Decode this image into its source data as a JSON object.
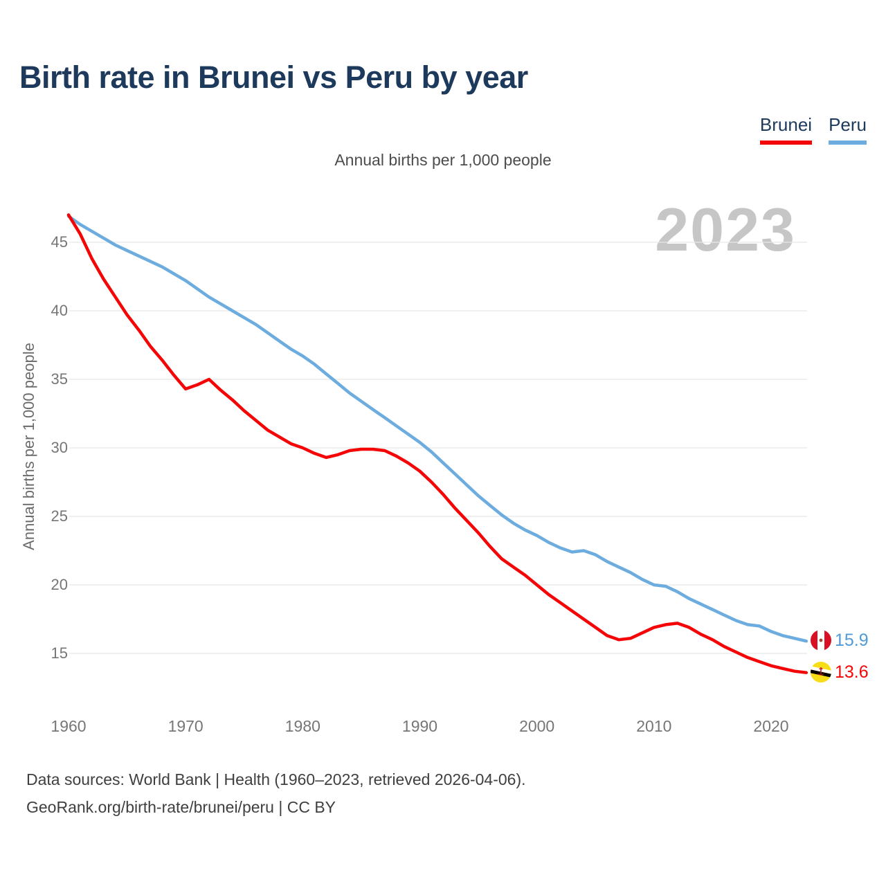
{
  "title": "Birth rate in Brunei vs Peru by year",
  "subtitle": "Annual births per 1,000 people",
  "watermark": "2023",
  "legend": {
    "items": [
      {
        "label": "Brunei",
        "color": "#f40606"
      },
      {
        "label": "Peru",
        "color": "#6cacdf"
      }
    ]
  },
  "y_axis": {
    "title": "Annual births per 1,000 people",
    "ticks": [
      45,
      40,
      35,
      30,
      25,
      20,
      15
    ]
  },
  "x_axis": {
    "ticks": [
      1960,
      1970,
      1980,
      1990,
      2000,
      2010,
      2020
    ]
  },
  "end_labels": [
    {
      "series": "Peru",
      "value": "15.9",
      "color": "#4f9bd8",
      "flag": "peru-flag"
    },
    {
      "series": "Brunei",
      "value": "13.6",
      "color": "#f40606",
      "flag": "brunei-flag"
    }
  ],
  "footer": {
    "line1": "Data sources: World Bank | Health (1960–2023, retrieved 2026-04-06).",
    "line2": "GeoRank.org/birth-rate/brunei/peru | CC BY"
  },
  "chart_data": {
    "type": "line",
    "title": "Birth rate in Brunei vs Peru by year",
    "ylabel": "Annual births per 1,000 people",
    "xlim": [
      1960,
      2023
    ],
    "ylim": [
      12.5,
      47.5
    ],
    "grid": "horizontal",
    "legend_position": "top-right",
    "x": [
      1960,
      1961,
      1962,
      1963,
      1964,
      1965,
      1966,
      1967,
      1968,
      1969,
      1970,
      1971,
      1972,
      1973,
      1974,
      1975,
      1976,
      1977,
      1978,
      1979,
      1980,
      1981,
      1982,
      1983,
      1984,
      1985,
      1986,
      1987,
      1988,
      1989,
      1990,
      1991,
      1992,
      1993,
      1994,
      1995,
      1996,
      1997,
      1998,
      1999,
      2000,
      2001,
      2002,
      2003,
      2004,
      2005,
      2006,
      2007,
      2008,
      2009,
      2010,
      2011,
      2012,
      2013,
      2014,
      2015,
      2016,
      2017,
      2018,
      2019,
      2020,
      2021,
      2022,
      2023
    ],
    "series": [
      {
        "name": "Peru",
        "color": "#6cacdf",
        "values": [
          46.9,
          46.3,
          45.8,
          45.3,
          44.8,
          44.4,
          44.0,
          43.6,
          43.2,
          42.7,
          42.2,
          41.6,
          41.0,
          40.5,
          40.0,
          39.5,
          39.0,
          38.4,
          37.8,
          37.2,
          36.7,
          36.1,
          35.4,
          34.7,
          34.0,
          33.4,
          32.8,
          32.2,
          31.6,
          31.0,
          30.4,
          29.7,
          28.9,
          28.1,
          27.3,
          26.5,
          25.8,
          25.1,
          24.5,
          24.0,
          23.6,
          23.1,
          22.7,
          22.4,
          22.5,
          22.2,
          21.7,
          21.3,
          20.9,
          20.4,
          20.0,
          19.9,
          19.5,
          19.0,
          18.6,
          18.2,
          17.8,
          17.4,
          17.1,
          17.0,
          16.6,
          16.3,
          16.1,
          15.9
        ]
      },
      {
        "name": "Brunei",
        "color": "#f40606",
        "values": [
          47.0,
          45.6,
          43.8,
          42.3,
          41.0,
          39.7,
          38.6,
          37.4,
          36.4,
          35.3,
          34.3,
          34.6,
          35.0,
          34.2,
          33.5,
          32.7,
          32.0,
          31.3,
          30.8,
          30.3,
          30.0,
          29.6,
          29.3,
          29.5,
          29.8,
          29.9,
          29.9,
          29.8,
          29.4,
          28.9,
          28.3,
          27.5,
          26.6,
          25.6,
          24.7,
          23.8,
          22.8,
          21.9,
          21.3,
          20.7,
          20.0,
          19.3,
          18.7,
          18.1,
          17.5,
          16.9,
          16.3,
          16.0,
          16.1,
          16.5,
          16.9,
          17.1,
          17.2,
          16.9,
          16.4,
          16.0,
          15.5,
          15.1,
          14.7,
          14.4,
          14.1,
          13.9,
          13.7,
          13.6
        ]
      }
    ]
  }
}
